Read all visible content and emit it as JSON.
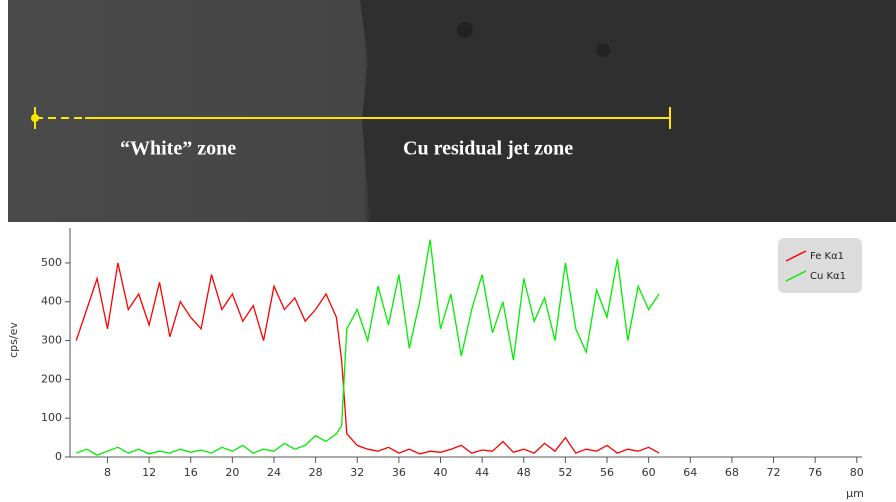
{
  "chart_data": {
    "type": "line",
    "annotations": [
      "“White” zone",
      "Cu residual jet zone"
    ],
    "y_label": "cps/ev",
    "x_label": "µm",
    "x": [
      5,
      6,
      7,
      8,
      9,
      10,
      11,
      12,
      13,
      14,
      15,
      16,
      17,
      18,
      19,
      20,
      21,
      22,
      23,
      24,
      25,
      26,
      27,
      28,
      29,
      30,
      30.5,
      31,
      32,
      33,
      34,
      35,
      36,
      37,
      38,
      39,
      40,
      41,
      42,
      43,
      44,
      45,
      46,
      47,
      48,
      49,
      50,
      51,
      52,
      53,
      54,
      55,
      56,
      57,
      58,
      59,
      60,
      61
    ],
    "series": [
      {
        "name": "Fe Kα1",
        "color": "#ff0000",
        "values": [
          300,
          380,
          460,
          330,
          500,
          380,
          420,
          340,
          450,
          310,
          400,
          360,
          330,
          470,
          380,
          420,
          350,
          390,
          300,
          440,
          380,
          410,
          350,
          380,
          420,
          360,
          250,
          60,
          30,
          20,
          15,
          25,
          10,
          20,
          8,
          15,
          12,
          20,
          30,
          10,
          18,
          15,
          40,
          12,
          20,
          10,
          35,
          15,
          50,
          10,
          20,
          15,
          30,
          10,
          20,
          15,
          25,
          10
        ]
      },
      {
        "name": "Cu Kα1",
        "color": "#00ee00",
        "values": [
          10,
          20,
          5,
          15,
          25,
          10,
          20,
          8,
          15,
          10,
          20,
          12,
          18,
          10,
          25,
          15,
          30,
          10,
          20,
          15,
          35,
          20,
          30,
          55,
          40,
          60,
          80,
          330,
          380,
          300,
          440,
          340,
          470,
          280,
          400,
          560,
          330,
          420,
          260,
          380,
          470,
          320,
          400,
          250,
          460,
          350,
          410,
          300,
          500,
          330,
          270,
          430,
          360,
          510,
          300,
          440,
          380,
          420
        ]
      }
    ],
    "xlim": [
      4.4,
      80.5
    ],
    "xticks": [
      8,
      12,
      16,
      20,
      24,
      28,
      32,
      36,
      40,
      44,
      48,
      52,
      56,
      60,
      64,
      68,
      72,
      76,
      80
    ],
    "ylim": [
      0,
      590
    ],
    "yticks": [
      0,
      100,
      200,
      300,
      400,
      500
    ],
    "legend": "top-right"
  }
}
